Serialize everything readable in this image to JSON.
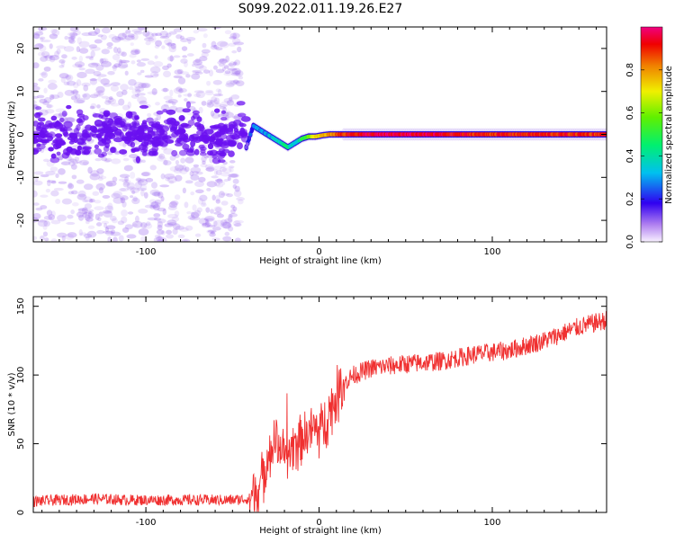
{
  "title": "S099.2022.011.19.26.E27",
  "colors": {
    "snr_line": "#f03030",
    "axis": "#000000",
    "background": "#ffffff",
    "spectrogram_noise": "#a070f0",
    "spectrogram_core": "#6a10f0"
  },
  "chart_data": [
    {
      "type": "heatmap",
      "xlabel": "Height of straight line (km)",
      "ylabel": "Frequency (Hz)",
      "xlim": [
        -165,
        166
      ],
      "ylim": [
        -25,
        25
      ],
      "xticks": [
        -100,
        0,
        100
      ],
      "yticks": [
        -20,
        -10,
        0,
        10,
        20
      ],
      "xtick_labels": [
        "-100",
        "0",
        "100"
      ],
      "ytick_labels": [
        "-20",
        "-10",
        "0",
        "10",
        "20"
      ],
      "colorbar": {
        "label": "Normalized spectral amplitude",
        "range": [
          0.0,
          1.0
        ],
        "ticks": [
          0.0,
          0.2,
          0.4,
          0.6,
          0.8
        ],
        "tick_labels": [
          "0.0",
          "0.2",
          "0.4",
          "0.6",
          "0.8"
        ],
        "colormap": "rainbow"
      },
      "ridge": {
        "x": [
          -42,
          -38,
          -34,
          -30,
          -26,
          -22,
          -18,
          -14,
          -10,
          -6,
          -2,
          2,
          6,
          10,
          14,
          30,
          60,
          90,
          120,
          150,
          166
        ],
        "frequency": [
          -3,
          2,
          1,
          0,
          -1,
          -2,
          -3,
          -2,
          -1,
          -0.5,
          -0.5,
          -0.2,
          0,
          0,
          0,
          0,
          0,
          0,
          0,
          0,
          0
        ],
        "amplitude": [
          0.15,
          0.25,
          0.3,
          0.3,
          0.35,
          0.4,
          0.4,
          0.35,
          0.45,
          0.6,
          0.7,
          0.75,
          0.8,
          0.85,
          0.9,
          0.95,
          0.95,
          0.9,
          0.9,
          0.9,
          0.9
        ]
      }
    },
    {
      "type": "line",
      "xlabel": "Height of straight line (km)",
      "ylabel": "SNR (10 * v/v)",
      "xlim": [
        -165,
        166
      ],
      "ylim": [
        0,
        157
      ],
      "xticks": [
        -100,
        0,
        100
      ],
      "yticks": [
        0,
        50,
        100,
        150
      ],
      "xtick_labels": [
        "-100",
        "0",
        "100"
      ],
      "ytick_labels": [
        "0",
        "50",
        "100",
        "150"
      ],
      "series": [
        {
          "x": [
            -165,
            -150,
            -130,
            -110,
            -90,
            -70,
            -50,
            -40,
            -34,
            -30,
            -25,
            -20,
            -15,
            -10,
            -5,
            0,
            5,
            10,
            15,
            20,
            30,
            50,
            70,
            90,
            110,
            130,
            150,
            166
          ],
          "values": [
            8,
            9,
            10,
            9,
            9,
            9,
            9,
            10,
            20,
            40,
            55,
            40,
            50,
            55,
            60,
            60,
            70,
            85,
            95,
            100,
            105,
            108,
            110,
            115,
            118,
            125,
            135,
            140
          ]
        }
      ]
    }
  ]
}
